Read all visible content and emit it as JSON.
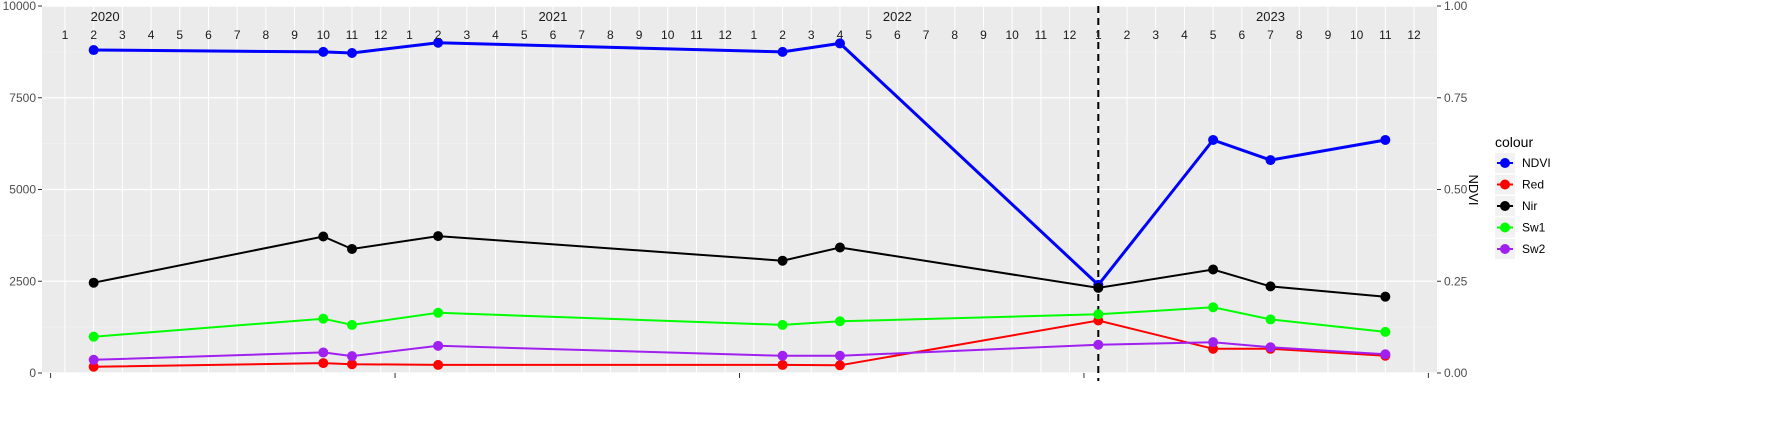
{
  "chart_data": {
    "type": "line",
    "x_unit": "month",
    "facet_years": [
      "2020",
      "2021",
      "2022",
      "2023"
    ],
    "months": [
      "1",
      "2",
      "3",
      "4",
      "5",
      "6",
      "7",
      "8",
      "9",
      "10",
      "11",
      "12"
    ],
    "ylim": [
      0,
      10000
    ],
    "yticks": [
      0,
      2500,
      5000,
      7500,
      10000
    ],
    "y2lim": [
      0,
      1
    ],
    "y2ticks": [
      "0.00",
      "0.25",
      "0.50",
      "0.75",
      "1.00"
    ],
    "y2label": "NDVI",
    "legend_title": "colour",
    "legend_position": "right",
    "vline": "2023-01",
    "x": [
      "2020-02",
      "2020-10",
      "2020-11",
      "2021-02",
      "2022-02",
      "2022-04",
      "2023-01",
      "2023-05",
      "2023-07",
      "2023-11"
    ],
    "series": [
      {
        "name": "NDVI",
        "color": "#0000FF",
        "values": [
          8800,
          8750,
          8720,
          9000,
          8750,
          8980,
          2400,
          6350,
          5800,
          6350
        ]
      },
      {
        "name": "Red",
        "color": "#FF0000",
        "values": [
          170,
          270,
          240,
          220,
          220,
          210,
          1430,
          660,
          660,
          470
        ]
      },
      {
        "name": "Nir",
        "color": "#000000",
        "values": [
          2460,
          3720,
          3380,
          3730,
          3060,
          3420,
          2320,
          2820,
          2360,
          2080
        ]
      },
      {
        "name": "Sw1",
        "color": "#00FF00",
        "values": [
          990,
          1480,
          1310,
          1640,
          1310,
          1410,
          1600,
          1790,
          1460,
          1120
        ]
      },
      {
        "name": "Sw2",
        "color": "#A020F0",
        "values": [
          360,
          560,
          460,
          740,
          470,
          470,
          770,
          840,
          700,
          510
        ]
      }
    ]
  }
}
